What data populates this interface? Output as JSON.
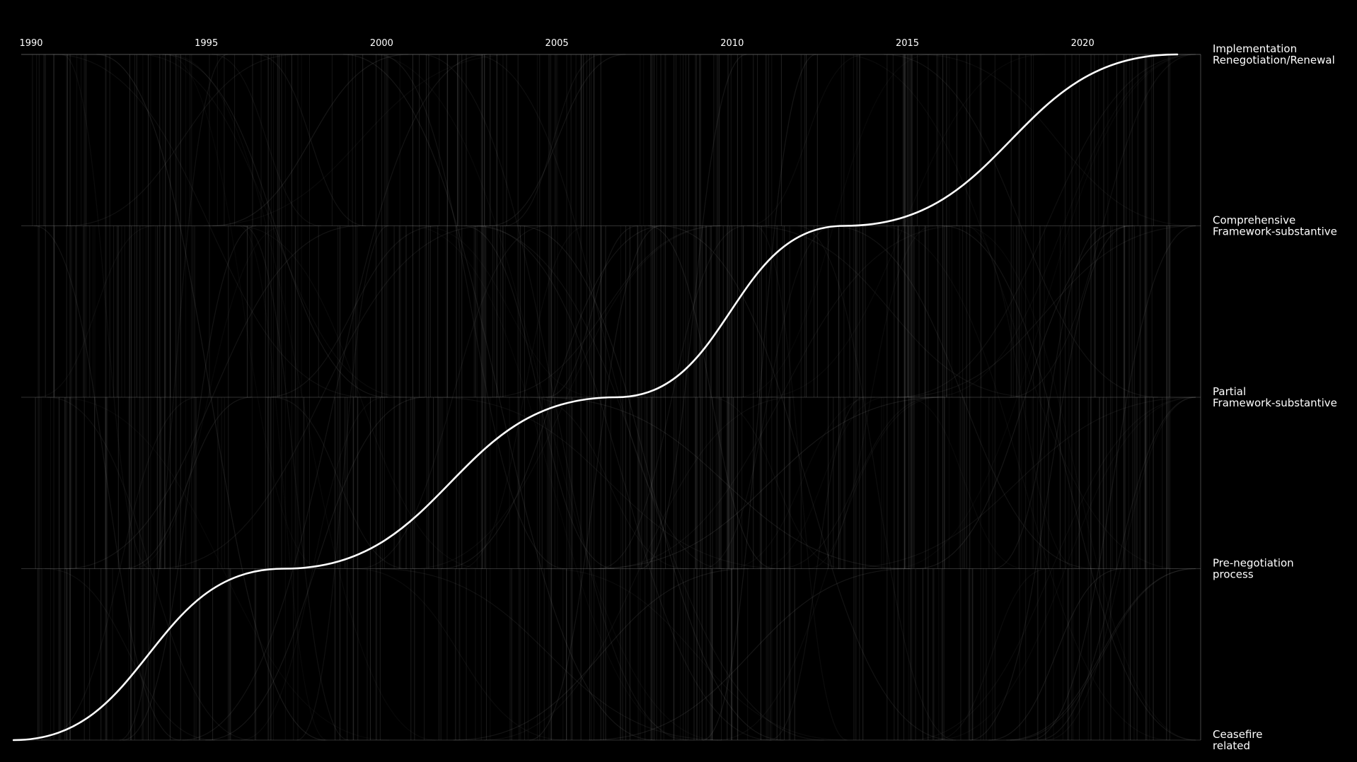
{
  "chart_data": {
    "type": "line",
    "title": "",
    "xlabel": "",
    "ylabel": "",
    "xlim": [
      1990,
      2022.7
    ],
    "x_ticks": [
      "1990",
      "1995",
      "2000",
      "2005",
      "2010",
      "2015",
      "2020"
    ],
    "x_tick_values": [
      1990,
      1995,
      2000,
      2005,
      2010,
      2015,
      2020
    ],
    "grid": true,
    "categories": [
      {
        "line1": "Ceasefire",
        "line2": "related"
      },
      {
        "line1": "Pre-negotiation",
        "line2": "process"
      },
      {
        "line1": "Partial",
        "line2": "Framework-substantive"
      },
      {
        "line1": "Comprehensive",
        "line2": "Framework-substantive"
      },
      {
        "line1": "Implementation",
        "line2": "Renegotiation/Renewal"
      }
    ],
    "highlight_series": {
      "points": [
        {
          "x": 1989.5,
          "y": 0
        },
        {
          "x": 1997.2,
          "y": 1
        },
        {
          "x": 2006.7,
          "y": 2
        },
        {
          "x": 2013.2,
          "y": 3
        },
        {
          "x": 2022.7,
          "y": 4
        }
      ],
      "color": "#ffffff"
    },
    "background_color": "#000000",
    "background_series_color": "#ffffff",
    "axis_color": "#8c8c8c"
  }
}
